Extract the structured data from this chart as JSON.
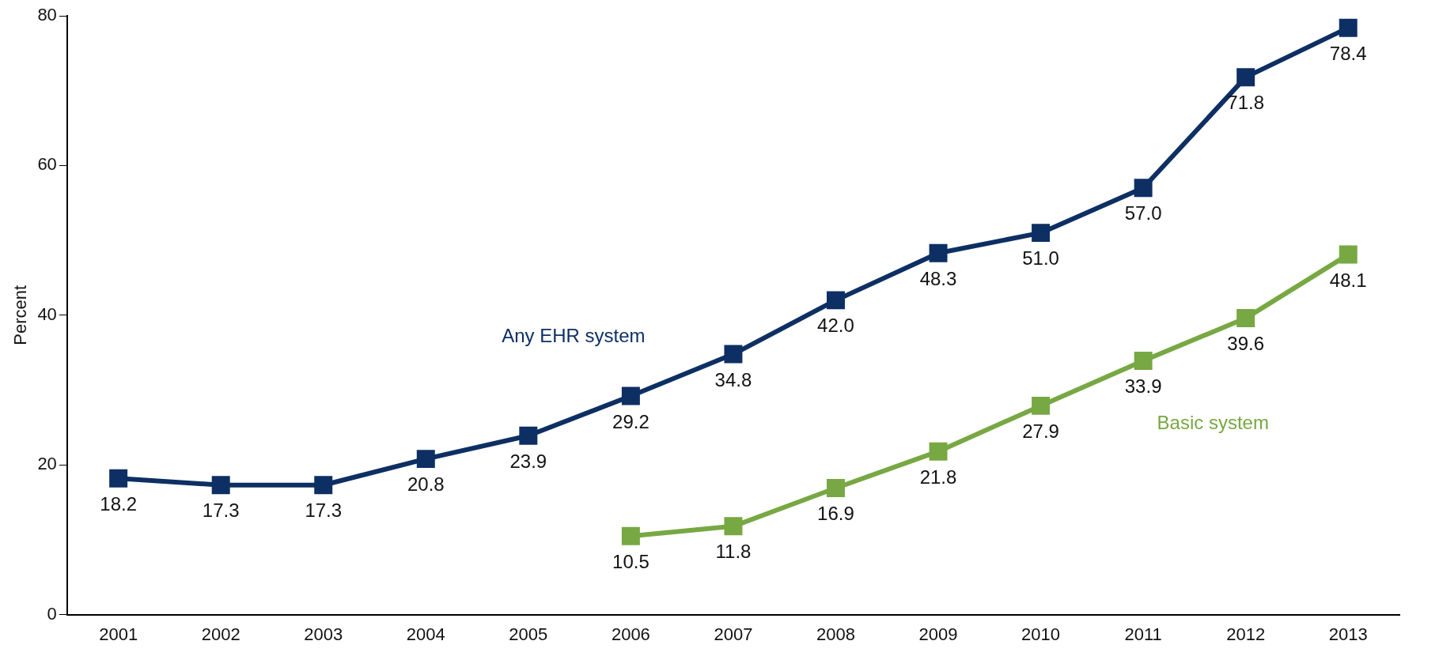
{
  "chart_data": {
    "type": "line",
    "ylabel": "Percent",
    "categories": [
      "2001",
      "2002",
      "2003",
      "2004",
      "2005",
      "2006",
      "2007",
      "2008",
      "2009",
      "2010",
      "2011",
      "2012",
      "2013"
    ],
    "series": [
      {
        "name": "Any EHR system",
        "color": "#0d2f63",
        "values": [
          18.2,
          17.3,
          17.3,
          20.8,
          23.9,
          29.2,
          34.8,
          42.0,
          48.3,
          51.0,
          57.0,
          71.8,
          78.4
        ],
        "value_labels": [
          "18.2",
          "17.3",
          "17.3",
          "20.8",
          "23.9",
          "29.2",
          "34.8",
          "42.0",
          "48.3",
          "51.0",
          "57.0",
          "71.8",
          "78.4"
        ]
      },
      {
        "name": "Basic system",
        "color": "#77a843",
        "values": [
          null,
          null,
          null,
          null,
          null,
          10.5,
          11.8,
          16.9,
          21.8,
          27.9,
          33.9,
          39.6,
          48.1
        ],
        "value_labels": [
          null,
          null,
          null,
          null,
          null,
          "10.5",
          "11.8",
          "16.9",
          "21.8",
          "27.9",
          "33.9",
          "39.6",
          "48.1"
        ]
      }
    ],
    "ylim": [
      0,
      80
    ],
    "yticks": [
      0,
      20,
      40,
      60,
      80
    ],
    "grid": false,
    "legend": false,
    "marker": "square",
    "line_style": "solid",
    "data_labels": true
  }
}
